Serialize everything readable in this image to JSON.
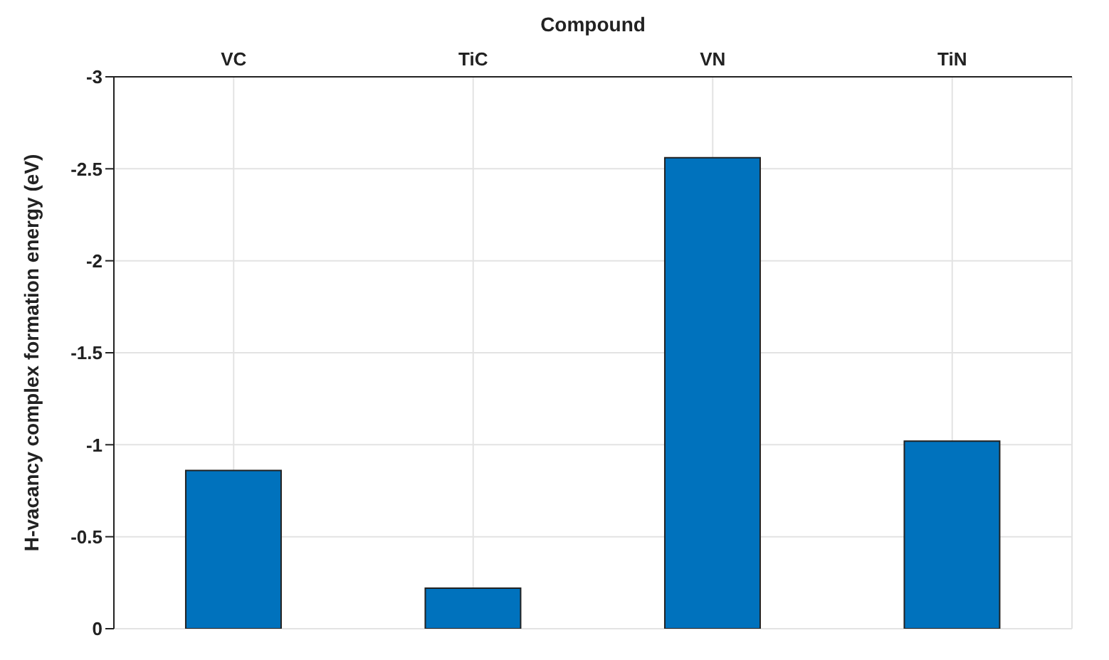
{
  "chart_data": {
    "type": "bar",
    "xlabel": "Compound",
    "ylabel": "H-vacancy complex formation energy (eV)",
    "categories": [
      "VC",
      "TiC",
      "VN",
      "TiN"
    ],
    "values": [
      -0.86,
      -0.22,
      -2.56,
      -1.02
    ],
    "color": "#0072bd",
    "ylim": [
      0,
      -3
    ],
    "yticks": [
      0,
      -0.5,
      -1,
      -1.5,
      -2,
      -2.5,
      -3
    ],
    "grid": true
  }
}
